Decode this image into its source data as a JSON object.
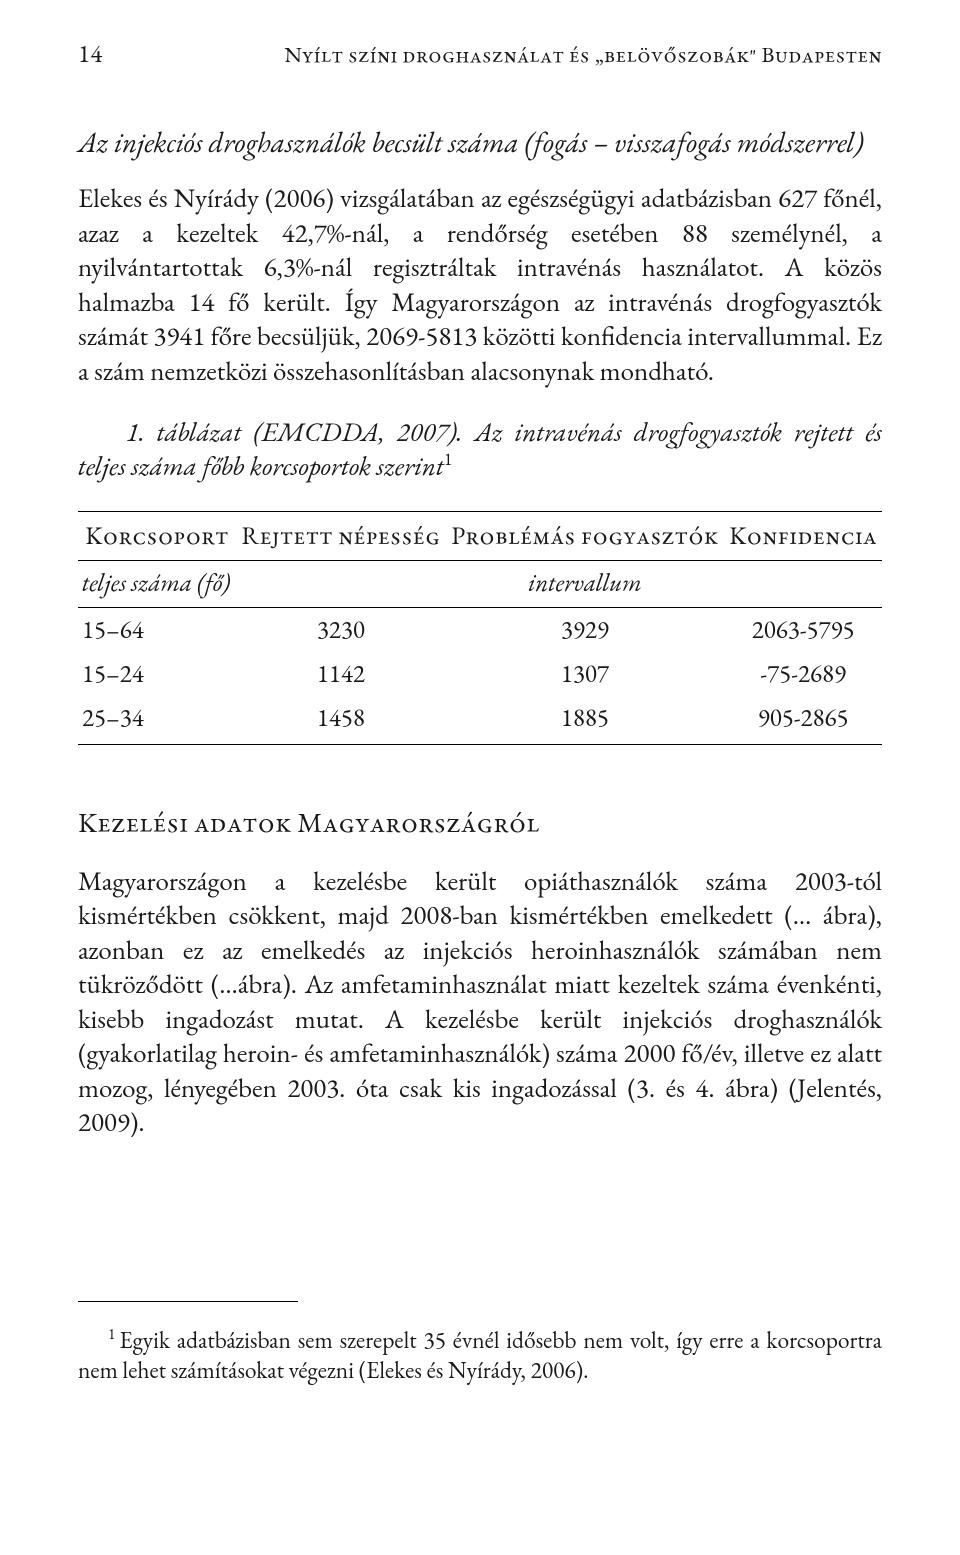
{
  "header": {
    "page_number": "14",
    "running_title": "Nyílt színi droghasználat és „belövőszobák\" Budapesten"
  },
  "section_title": "Az injekciós droghasználók becsült száma (fogás – visszafogás módszerrel)",
  "para1": "Elekes és Nyírády (2006) vizsgálatában az egészségügyi adatbázisban 627 főnél, azaz a kezeltek 42,7%-nál, a rendőrség esetében 88 személynél, a nyilvántartottak 6,3%-nál regisztráltak intravénás használatot. A közös halmazba 14 fő került. Így Magyarországon az intravénás drogfogyasztók számát 3941 főre becsüljük, 2069-5813 közötti konfidencia intervallummal. Ez a szám nemzetközi összehasonlításban alacsonynak mondható.",
  "figure_caption_prefix": "1. táblázat (EMCDDA, 2007). Az intravénás drogfogyasztók rejtett és teljes száma főbb korcsoportok szerint",
  "table": {
    "headers": [
      "Korcsoport",
      "Rejtett népesség",
      "Problémás fogyasztók",
      "Konfidencia"
    ],
    "sub_left": "teljes száma (fő)",
    "sub_right": "intervallum",
    "rows": [
      [
        "15–64",
        "3230",
        "3929",
        "2063-5795"
      ],
      [
        "15–24",
        "1142",
        "1307",
        "-75-2689"
      ],
      [
        "25–34",
        "1458",
        "1885",
        "905-2865"
      ]
    ]
  },
  "section2_head": "Kezelési adatok Magyarországról",
  "para2": "Magyarországon a kezelésbe került opiáthasználók száma 2003-tól kismértékben csökkent, majd 2008-ban kismértékben emelkedett (… ábra), azonban ez az emelkedés az injekciós heroinhasználók számában nem tükröződött (…ábra). Az amfetaminhasználat miatt kezeltek száma évenkénti, kisebb ingadozást mutat. A kezelésbe került injekciós droghasználók (gyakorlatilag heroin- és amfetaminhasználók) száma 2000 fő/év, illetve ez alatt mozog, lényegében 2003. óta csak kis ingadozással (3. és 4. ábra) (Jelentés, 2009).",
  "footnote": {
    "mark": "1",
    "text": "Egyik adatbázisban sem szerepelt 35 évnél idősebb nem volt, így erre a korcsoportra nem lehet számításokat végezni (Elekes és Nyírády, 2006)."
  }
}
